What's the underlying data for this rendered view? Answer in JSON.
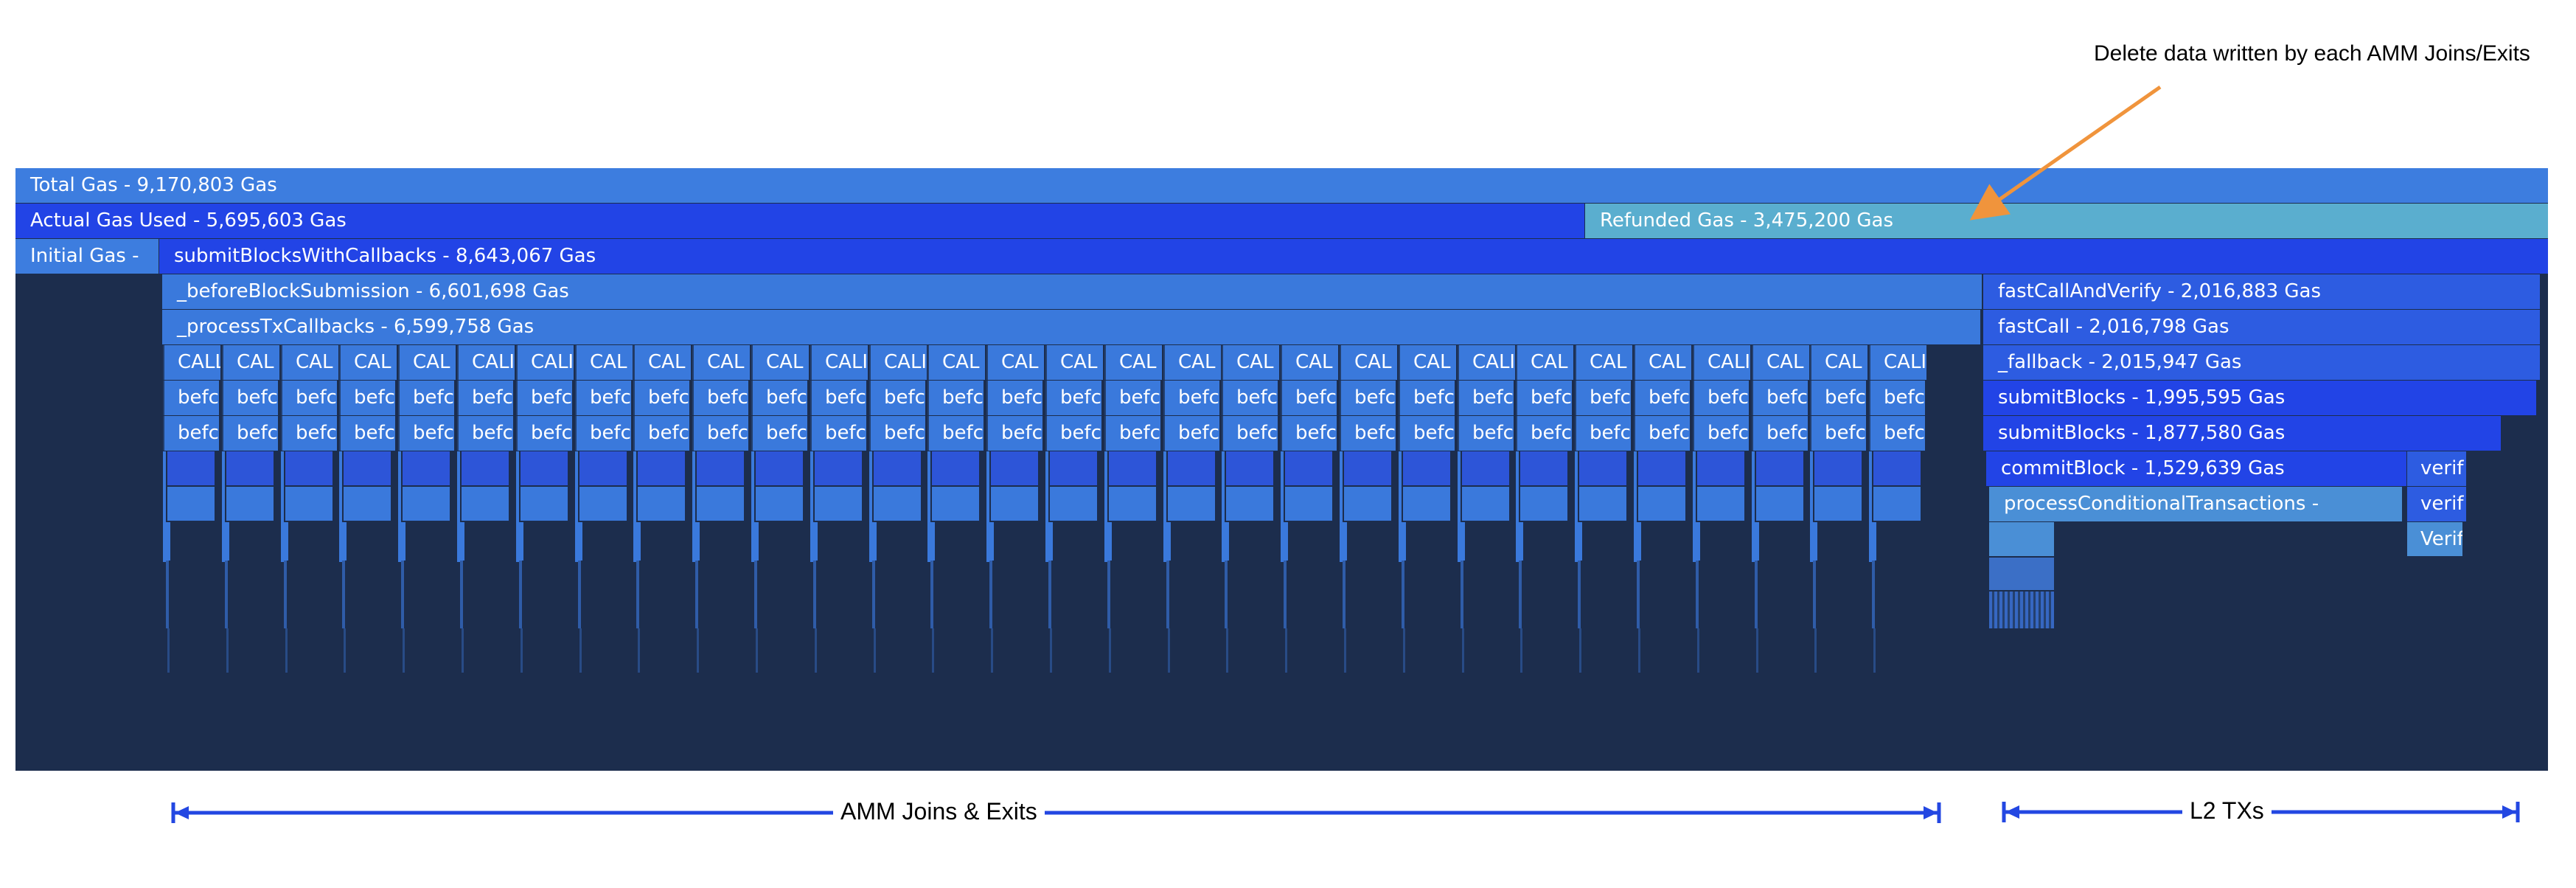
{
  "colors": {
    "panel": "#1c2d4d",
    "total": "#3d7ddf",
    "actual": "#2244e6",
    "refunded": "#5aaecf",
    "initial": "#3d7ddf",
    "submit_with_callbacks": "#2244e6",
    "before_block_submission": "#3a79dc",
    "process_tx_callbacks": "#3a79dc",
    "right_stack": "#2d5ce1",
    "process_conditional": "#4a8fd6",
    "call_column": "#3a79dc",
    "call_blue": "#2d55d8",
    "arrow": "#f0943c",
    "bracket": "#2347e2"
  },
  "flame": {
    "total_gas": "Total Gas - 9,170,803 Gas",
    "actual_gas_used": "Actual Gas Used - 5,695,603 Gas",
    "refunded_gas": "Refunded Gas - 3,475,200 Gas",
    "initial_gas": "Initial Gas -",
    "submit_blocks_with_callbacks": "submitBlocksWithCallbacks - 8,643,067 Gas",
    "before_block_submission": "_beforeBlockSubmission - 6,601,698 Gas",
    "process_tx_callbacks": "_processTxCallbacks - 6,599,758 Gas",
    "fast_call_and_verify": "fastCallAndVerify - 2,016,883 Gas",
    "fast_call": "fastCall - 2,016,798 Gas",
    "fallback": "_fallback - 2,015,947 Gas",
    "submit_blocks_1": "submitBlocks - 1,995,595 Gas",
    "submit_blocks_2": "submitBlocks - 1,877,580 Gas",
    "commit_block": "commitBlock - 1,529,639 Gas",
    "process_conditional_transactions": "processConditionalTransactions -",
    "verify_1": "verif",
    "verify_2": "verif",
    "verify_3": "Verif",
    "call_columns": [
      {
        "call": "CALL",
        "before1": "befc",
        "before2": "befc"
      },
      {
        "call": "CAL",
        "before1": "befc",
        "before2": "befc"
      },
      {
        "call": "CAL",
        "before1": "befc",
        "before2": "befc"
      },
      {
        "call": "CAL",
        "before1": "befc",
        "before2": "befc"
      },
      {
        "call": "CAL",
        "before1": "befc",
        "before2": "befc"
      },
      {
        "call": "CALI",
        "before1": "befc",
        "before2": "befc"
      },
      {
        "call": "CALI",
        "before1": "befc",
        "before2": "befc"
      },
      {
        "call": "CAL",
        "before1": "befc",
        "before2": "befc"
      },
      {
        "call": "CAL",
        "before1": "befc",
        "before2": "befc"
      },
      {
        "call": "CAL",
        "before1": "befc",
        "before2": "befc"
      },
      {
        "call": "CAL",
        "before1": "befc",
        "before2": "befc"
      },
      {
        "call": "CALI",
        "before1": "befc",
        "before2": "befc"
      },
      {
        "call": "CALI",
        "before1": "befc",
        "before2": "befc"
      },
      {
        "call": "CAL",
        "before1": "befc",
        "before2": "befc"
      },
      {
        "call": "CAL",
        "before1": "befc",
        "before2": "befc"
      },
      {
        "call": "CAL",
        "before1": "befc",
        "before2": "befc"
      },
      {
        "call": "CAL",
        "before1": "befc",
        "before2": "befc"
      },
      {
        "call": "CAL",
        "before1": "befc",
        "before2": "befc"
      },
      {
        "call": "CAL",
        "before1": "befc",
        "before2": "befc"
      },
      {
        "call": "CAL",
        "before1": "befc",
        "before2": "befc"
      },
      {
        "call": "CAL",
        "before1": "befc",
        "before2": "befc"
      },
      {
        "call": "CAL",
        "before1": "befc",
        "before2": "befc"
      },
      {
        "call": "CALI",
        "before1": "befc",
        "before2": "befc"
      },
      {
        "call": "CAL",
        "before1": "befc",
        "before2": "befc"
      },
      {
        "call": "CAL",
        "before1": "befc",
        "before2": "befc"
      },
      {
        "call": "CAL",
        "before1": "befc",
        "before2": "befc"
      },
      {
        "call": "CALI",
        "before1": "befc",
        "before2": "befc"
      },
      {
        "call": "CAL",
        "before1": "befc",
        "before2": "befc"
      },
      {
        "call": "CAL",
        "before1": "befc",
        "before2": "befc"
      },
      {
        "call": "CALI",
        "before1": "befc",
        "before2": "befc"
      }
    ]
  },
  "annotation": {
    "text": "Delete data written by each AMM Joins/Exits"
  },
  "brackets": {
    "amm": "AMM Joins & Exits",
    "l2": "L2 TXs"
  }
}
